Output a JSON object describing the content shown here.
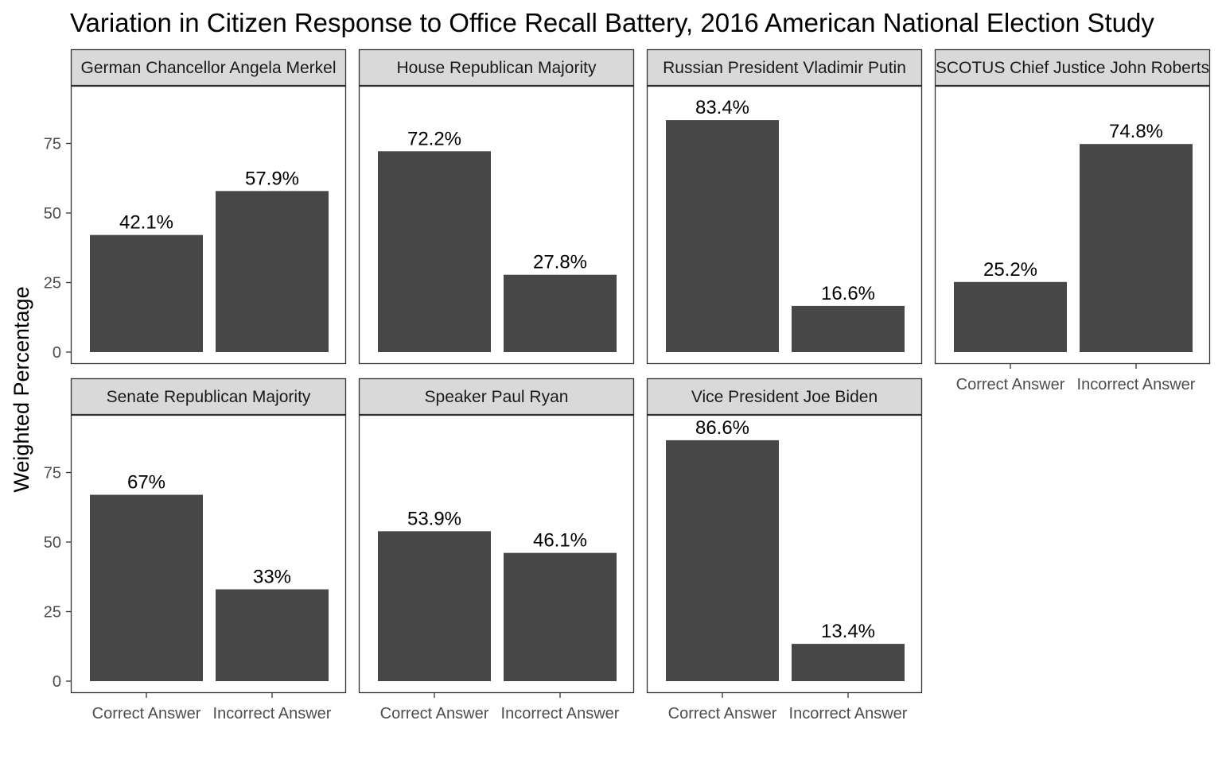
{
  "chart_data": {
    "type": "bar",
    "title": "Variation in Citizen Response to Office Recall Battery, 2016 American National Election Study",
    "xlabel": "",
    "ylabel": "Weighted Percentage",
    "ylim": [
      0,
      95
    ],
    "y_ticks": [
      0,
      25,
      50,
      75
    ],
    "grid": false,
    "bar_color": "#474747",
    "strip_fill": "#d9d9d9",
    "panel_border": "#333333",
    "categories": [
      "Correct Answer",
      "Incorrect Answer"
    ],
    "facets": [
      {
        "title": "German Chancellor Angela Merkel",
        "values": [
          42.1,
          57.9
        ],
        "labels": [
          "42.1%",
          "57.9%"
        ]
      },
      {
        "title": "House Republican Majority",
        "values": [
          72.2,
          27.8
        ],
        "labels": [
          "72.2%",
          "27.8%"
        ]
      },
      {
        "title": "Russian President Vladimir Putin",
        "values": [
          83.4,
          16.6
        ],
        "labels": [
          "83.4%",
          "16.6%"
        ]
      },
      {
        "title": "SCOTUS Chief Justice John Roberts",
        "values": [
          25.2,
          74.8
        ],
        "labels": [
          "25.2%",
          "74.8%"
        ]
      },
      {
        "title": "Senate Republican Majority",
        "values": [
          67,
          33
        ],
        "labels": [
          "67%",
          "33%"
        ]
      },
      {
        "title": "Speaker Paul Ryan",
        "values": [
          53.9,
          46.1
        ],
        "labels": [
          "53.9%",
          "46.1%"
        ]
      },
      {
        "title": "Vice President Joe Biden",
        "values": [
          86.6,
          13.4
        ],
        "labels": [
          "86.6%",
          "13.4%"
        ]
      }
    ]
  }
}
